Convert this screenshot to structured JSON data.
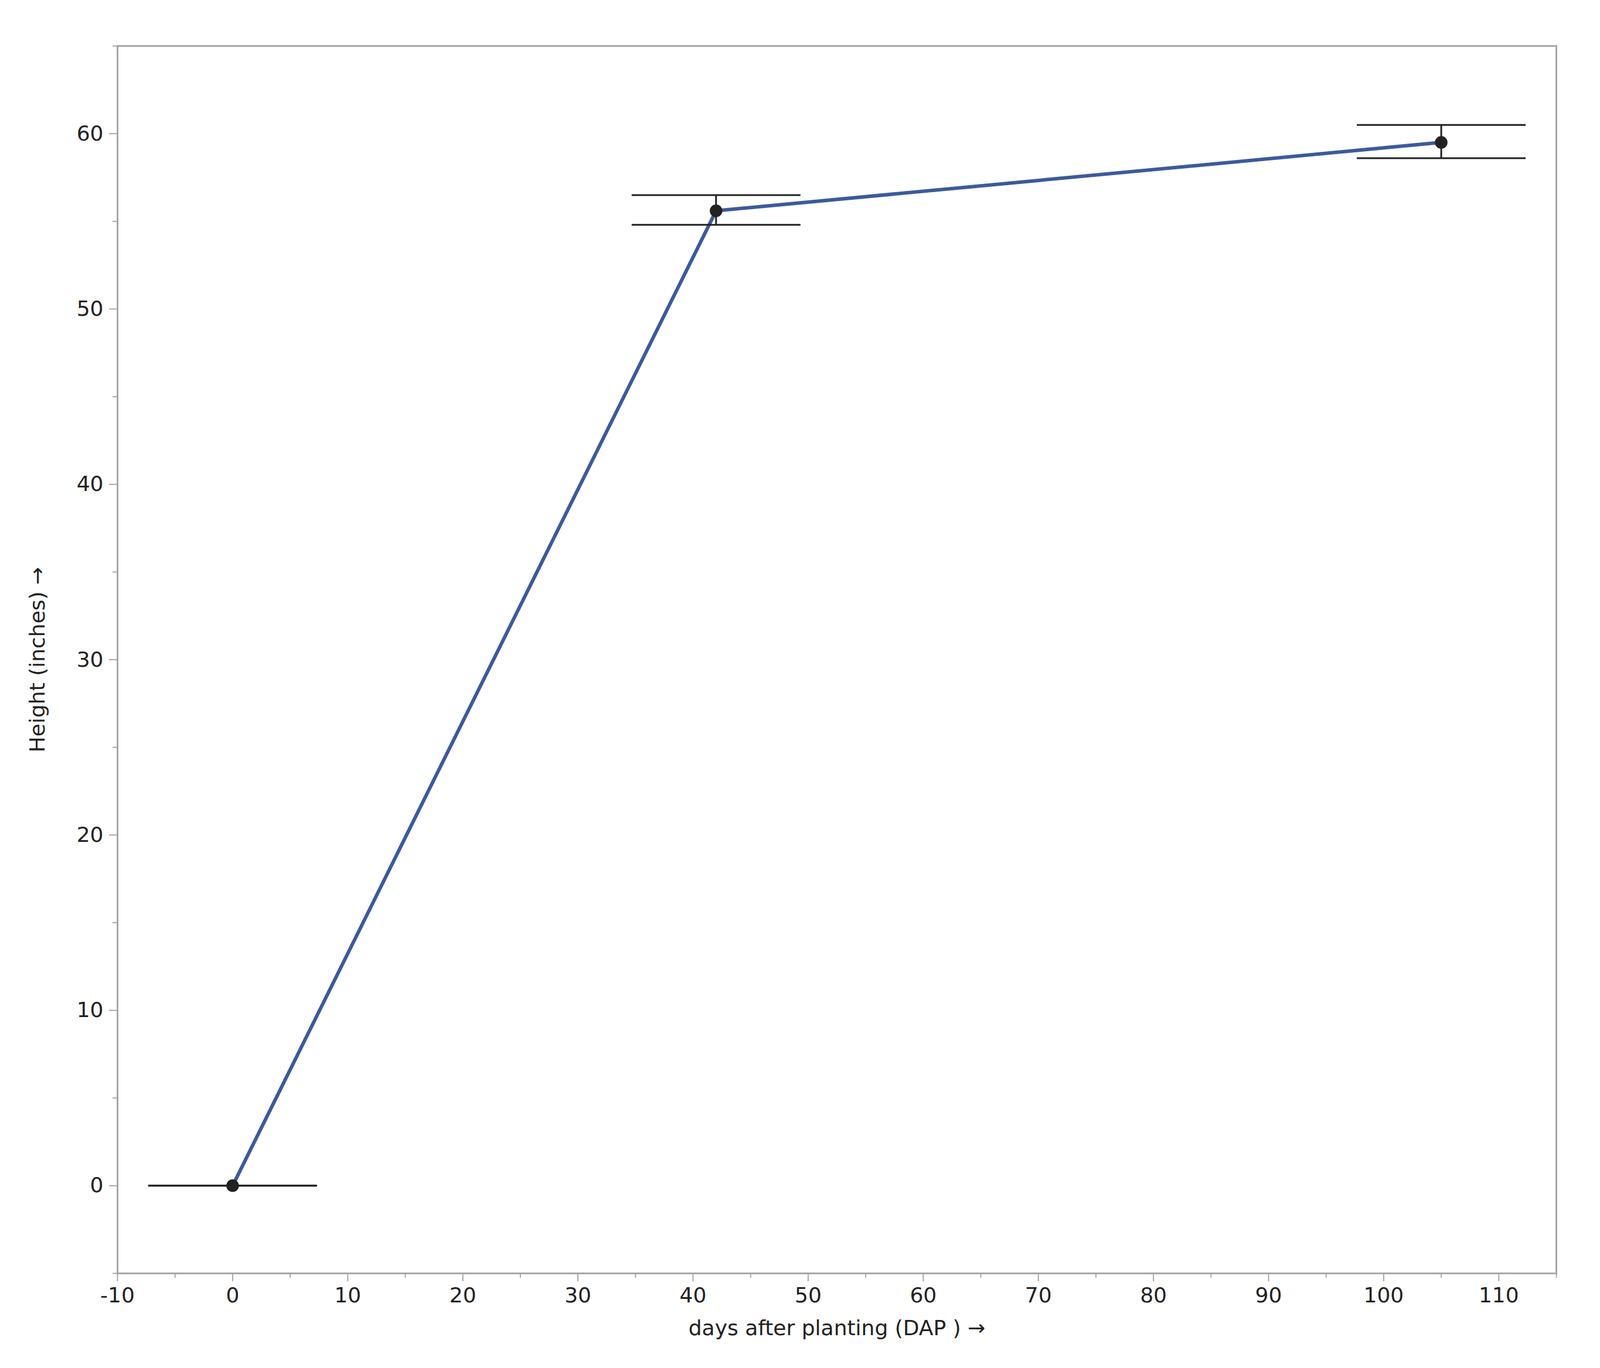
{
  "chart_data": {
    "type": "line",
    "x_label": "days after planting (DAP )",
    "y_label": "Height (inches)",
    "x": [
      0,
      42,
      105
    ],
    "series": [
      {
        "name": "Height",
        "color": "#3c5a9c",
        "values": [
          0,
          55.6,
          59.5
        ],
        "error_low": [
          0,
          54.8,
          58.6
        ],
        "error_high": [
          0,
          56.5,
          60.5
        ],
        "marker": "circle",
        "line_style": "solid"
      }
    ],
    "xlim": [
      -10,
      115
    ],
    "xticks": [
      -10,
      0,
      10,
      20,
      30,
      40,
      50,
      60,
      70,
      80,
      90,
      100,
      110
    ],
    "ylim": [
      -5,
      65
    ],
    "yticks": [
      0,
      10,
      20,
      30,
      40,
      50,
      60
    ],
    "grid": false
  }
}
